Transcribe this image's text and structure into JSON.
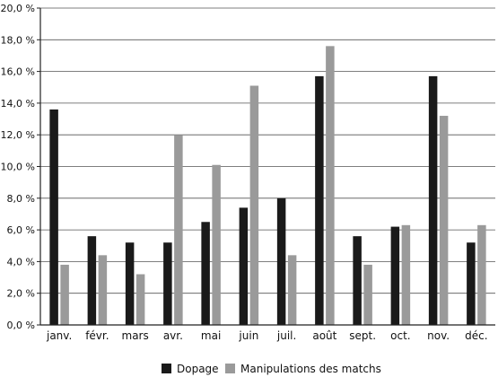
{
  "chart_data": {
    "type": "bar",
    "categories": [
      "janv.",
      "févr.",
      "mars",
      "avr.",
      "mai",
      "juin",
      "juil.",
      "août",
      "sept.",
      "oct.",
      "nov.",
      "déc."
    ],
    "series": [
      {
        "name": "Dopage",
        "color": "#1a1a1a",
        "values": [
          13.6,
          5.6,
          5.2,
          5.2,
          6.5,
          7.4,
          8.0,
          15.7,
          5.6,
          6.2,
          15.7,
          5.2
        ]
      },
      {
        "name": "Manipulations des matchs",
        "color": "#9a9a9a",
        "values": [
          3.8,
          4.4,
          3.2,
          12.0,
          10.1,
          15.1,
          4.4,
          17.6,
          3.8,
          6.3,
          13.2,
          6.3
        ]
      }
    ],
    "yticks": [
      "0,0 %",
      "2,0 %",
      "4,0 %",
      "6,0 %",
      "8,0 %",
      "10,0 %",
      "12,0 %",
      "14,0 %",
      "16,0 %",
      "18,0 %",
      "20,0 %"
    ],
    "ylim": [
      0,
      20
    ],
    "grid": true,
    "legend_position": "bottom"
  }
}
